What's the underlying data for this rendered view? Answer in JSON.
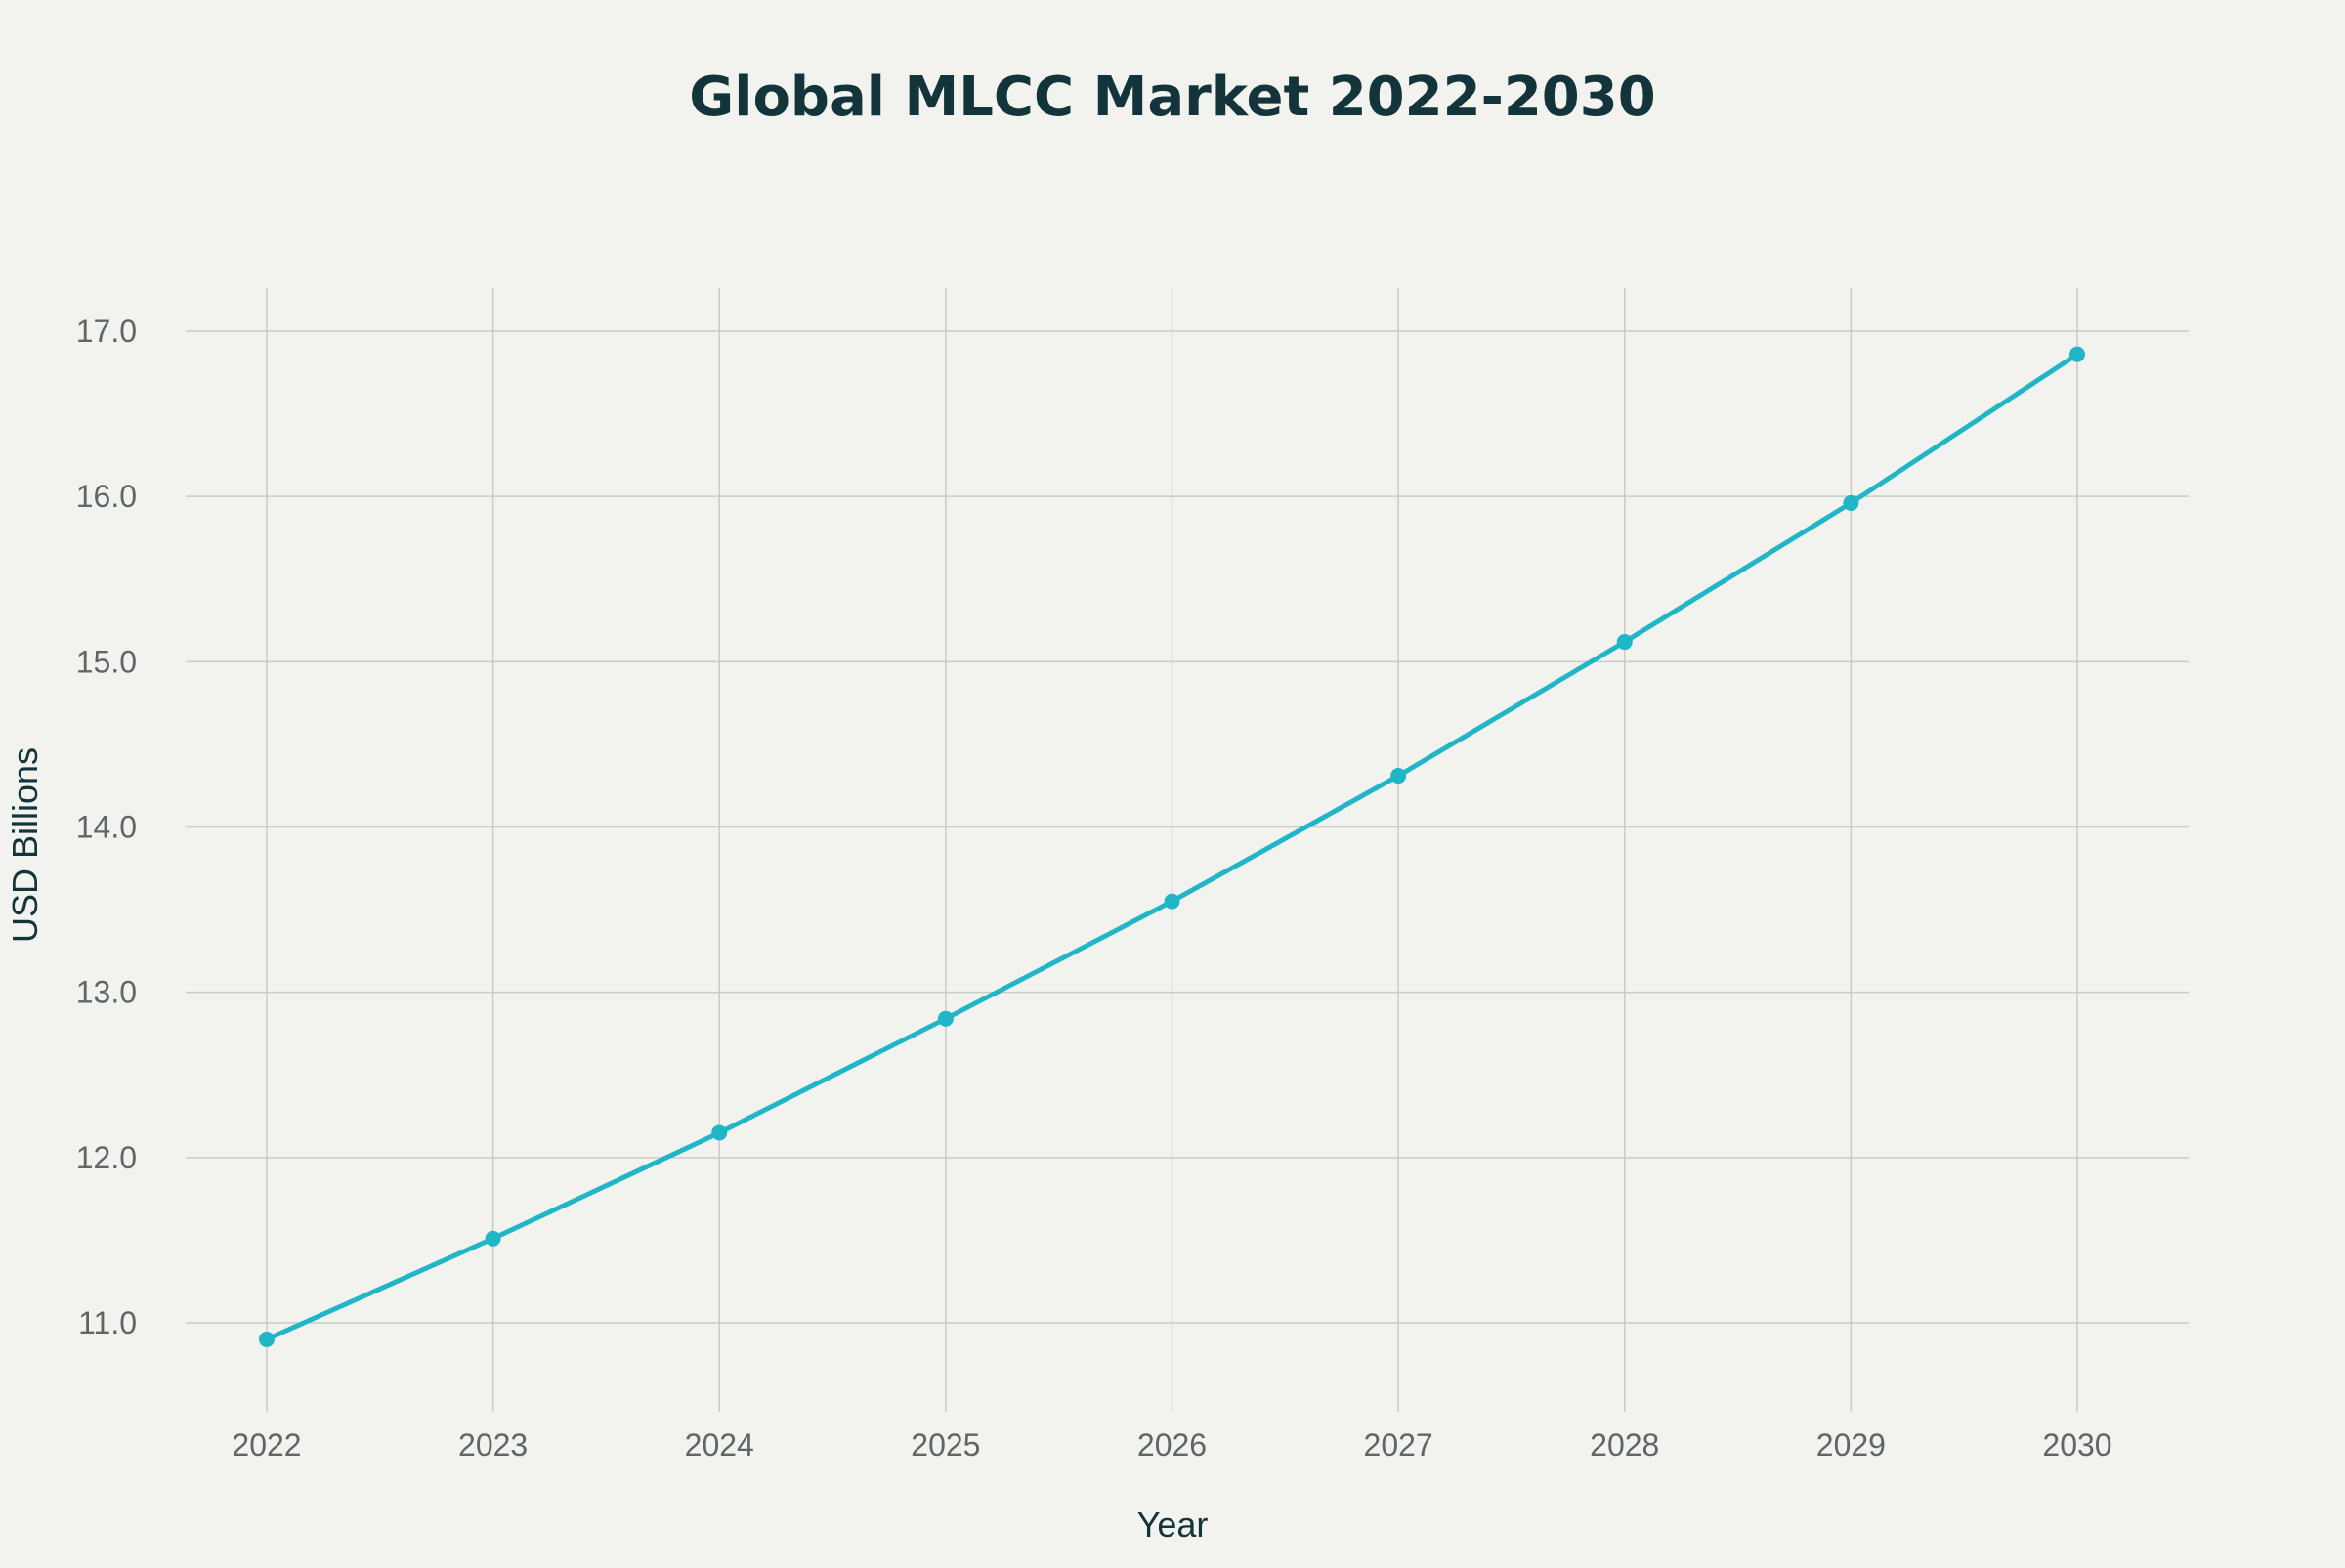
{
  "chart_data": {
    "type": "line",
    "title": "Global MLCC Market 2022-2030",
    "xlabel": "Year",
    "ylabel": "USD Billions",
    "x": [
      "2022",
      "2023",
      "2024",
      "2025",
      "2026",
      "2027",
      "2028",
      "2029",
      "2030"
    ],
    "series": [
      {
        "values": [
          10.9,
          11.51,
          12.15,
          12.84,
          13.55,
          14.31,
          15.12,
          15.96,
          16.86
        ],
        "color": "#21b5c8"
      }
    ],
    "ylim": [
      10.55,
      17.25
    ],
    "yticks": [
      "11.0",
      "12.0",
      "13.0",
      "14.0",
      "15.0",
      "16.0",
      "17.0"
    ],
    "grid": true,
    "legend": "none"
  }
}
